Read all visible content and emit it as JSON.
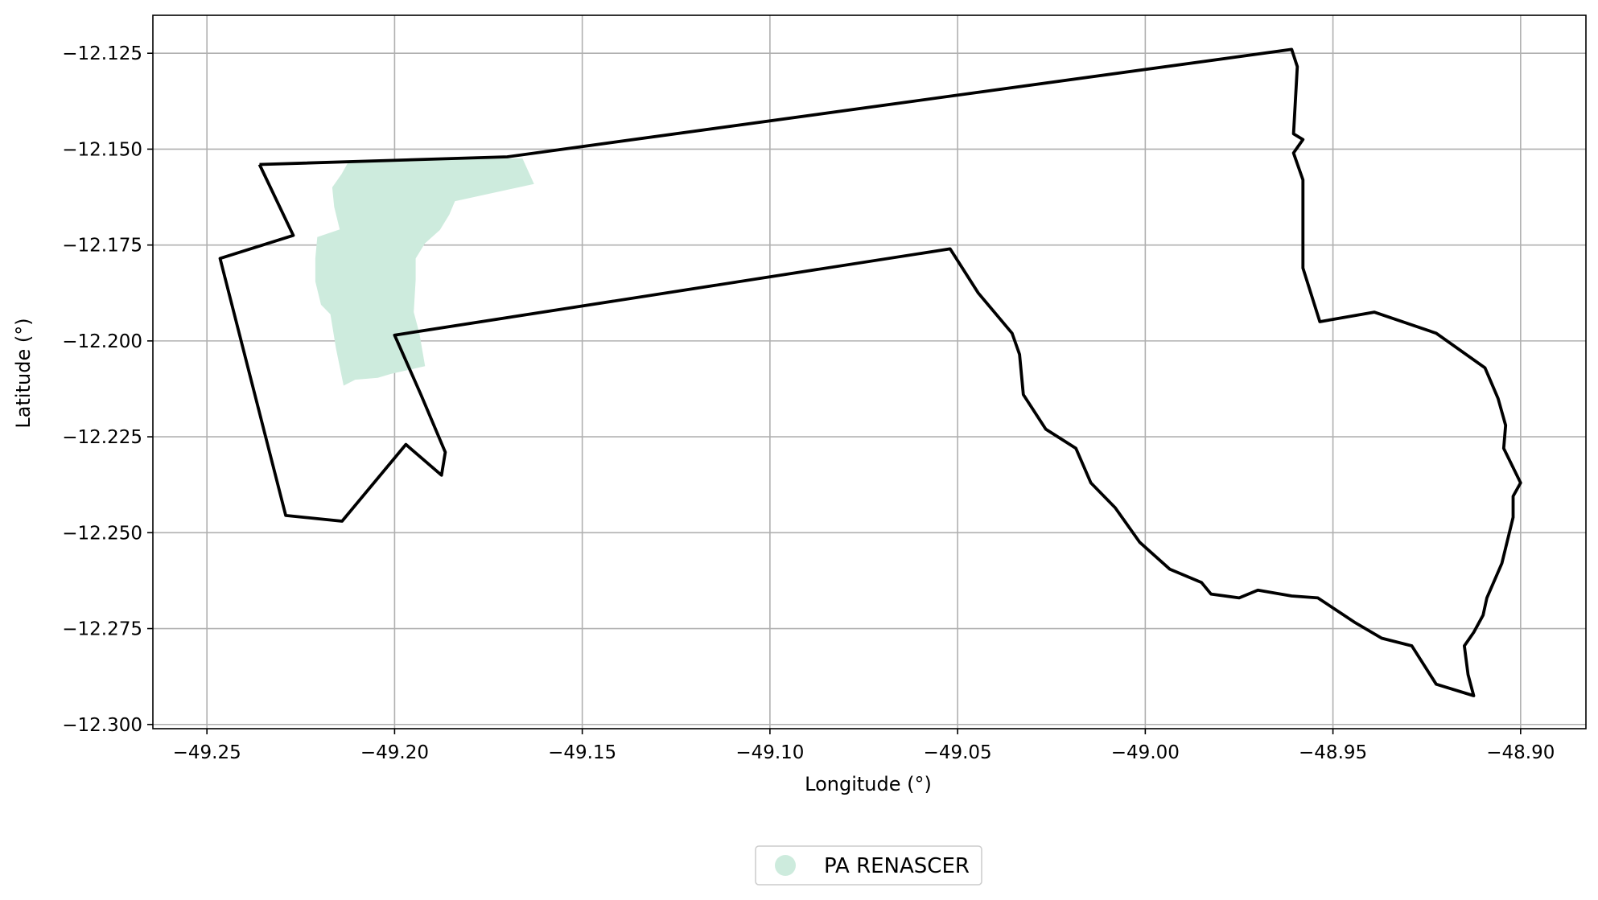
{
  "chart_data": {
    "type": "map",
    "xlabel": "Longitude (°)",
    "ylabel": "Latitude (°)",
    "xlim": [
      -49.2644,
      -48.8826
    ],
    "ylim": [
      -12.3011,
      -12.1151
    ],
    "x_ticks": [
      {
        "value": -49.25,
        "label": "−49.25"
      },
      {
        "value": -49.2,
        "label": "−49.20"
      },
      {
        "value": -49.15,
        "label": "−49.15"
      },
      {
        "value": -49.1,
        "label": "−49.10"
      },
      {
        "value": -49.05,
        "label": "−49.05"
      },
      {
        "value": -49.0,
        "label": "−49.00"
      },
      {
        "value": -48.95,
        "label": "−48.95"
      },
      {
        "value": -48.9,
        "label": "−48.90"
      }
    ],
    "y_ticks": [
      {
        "value": -12.125,
        "label": "−12.125"
      },
      {
        "value": -12.15,
        "label": "−12.150"
      },
      {
        "value": -12.175,
        "label": "−12.175"
      },
      {
        "value": -12.2,
        "label": "−12.200"
      },
      {
        "value": -12.225,
        "label": "−12.225"
      },
      {
        "value": -12.25,
        "label": "−12.250"
      },
      {
        "value": -12.275,
        "label": "−12.275"
      },
      {
        "value": -12.3,
        "label": "−12.300"
      }
    ],
    "grid": true,
    "legend_position": "bottom-center",
    "boundary": {
      "color": "#000000",
      "coordinates": [
        [
          -49.236,
          -12.154
        ],
        [
          -49.17,
          -12.152
        ],
        [
          -48.961,
          -12.124
        ],
        [
          -48.9595,
          -12.1285
        ],
        [
          -48.9605,
          -12.146
        ],
        [
          -48.958,
          -12.1475
        ],
        [
          -48.9605,
          -12.151
        ],
        [
          -48.958,
          -12.158
        ],
        [
          -48.958,
          -12.181
        ],
        [
          -48.9535,
          -12.195
        ],
        [
          -48.939,
          -12.1925
        ],
        [
          -48.9225,
          -12.198
        ],
        [
          -48.9095,
          -12.207
        ],
        [
          -48.906,
          -12.215
        ],
        [
          -48.904,
          -12.222
        ],
        [
          -48.9045,
          -12.228
        ],
        [
          -48.9,
          -12.237
        ],
        [
          -48.902,
          -12.2405
        ],
        [
          -48.902,
          -12.246
        ],
        [
          -48.905,
          -12.258
        ],
        [
          -48.909,
          -12.267
        ],
        [
          -48.91,
          -12.2715
        ],
        [
          -48.9125,
          -12.276
        ],
        [
          -48.915,
          -12.2795
        ],
        [
          -48.914,
          -12.287
        ],
        [
          -48.9125,
          -12.2925
        ],
        [
          -48.9225,
          -12.2895
        ],
        [
          -48.929,
          -12.2795
        ],
        [
          -48.937,
          -12.2775
        ],
        [
          -48.944,
          -12.2735
        ],
        [
          -48.954,
          -12.267
        ],
        [
          -48.961,
          -12.2665
        ],
        [
          -48.97,
          -12.265
        ],
        [
          -48.975,
          -12.267
        ],
        [
          -48.9825,
          -12.266
        ],
        [
          -48.985,
          -12.263
        ],
        [
          -48.9935,
          -12.2595
        ],
        [
          -49.0015,
          -12.2525
        ],
        [
          -49.008,
          -12.2435
        ],
        [
          -49.0145,
          -12.237
        ],
        [
          -49.0185,
          -12.228
        ],
        [
          -49.0265,
          -12.223
        ],
        [
          -49.0325,
          -12.214
        ],
        [
          -49.0335,
          -12.2035
        ],
        [
          -49.0355,
          -12.198
        ],
        [
          -49.0445,
          -12.1875
        ],
        [
          -49.052,
          -12.176
        ],
        [
          -49.2,
          -12.1985
        ],
        [
          -49.193,
          -12.214
        ],
        [
          -49.1865,
          -12.229
        ],
        [
          -49.1875,
          -12.235
        ],
        [
          -49.197,
          -12.227
        ],
        [
          -49.214,
          -12.247
        ],
        [
          -49.229,
          -12.2455
        ],
        [
          -49.2465,
          -12.1785
        ],
        [
          -49.227,
          -12.1725
        ],
        [
          -49.236,
          -12.154
        ]
      ]
    },
    "series": [
      {
        "name": "PA RENASCER",
        "color": "#cdebdd",
        "polygons": [
          [
            [
              -49.212,
              -12.153
            ],
            [
              -49.166,
              -12.1525
            ],
            [
              -49.163,
              -12.159
            ],
            [
              -49.184,
              -12.1635
            ],
            [
              -49.1855,
              -12.167
            ],
            [
              -49.188,
              -12.171
            ],
            [
              -49.192,
              -12.1745
            ],
            [
              -49.1945,
              -12.1785
            ],
            [
              -49.1945,
              -12.184
            ],
            [
              -49.195,
              -12.1925
            ],
            [
              -49.1935,
              -12.198
            ],
            [
              -49.192,
              -12.2065
            ],
            [
              -49.201,
              -12.2085
            ],
            [
              -49.2045,
              -12.2095
            ],
            [
              -49.2105,
              -12.21
            ],
            [
              -49.2135,
              -12.2115
            ],
            [
              -49.2155,
              -12.202
            ],
            [
              -49.217,
              -12.193
            ],
            [
              -49.2195,
              -12.1905
            ],
            [
              -49.221,
              -12.1845
            ],
            [
              -49.221,
              -12.1785
            ],
            [
              -49.2205,
              -12.173
            ],
            [
              -49.2145,
              -12.171
            ],
            [
              -49.216,
              -12.165
            ],
            [
              -49.2165,
              -12.16
            ],
            [
              -49.214,
              -12.1565
            ],
            [
              -49.212,
              -12.153
            ]
          ]
        ]
      }
    ]
  }
}
